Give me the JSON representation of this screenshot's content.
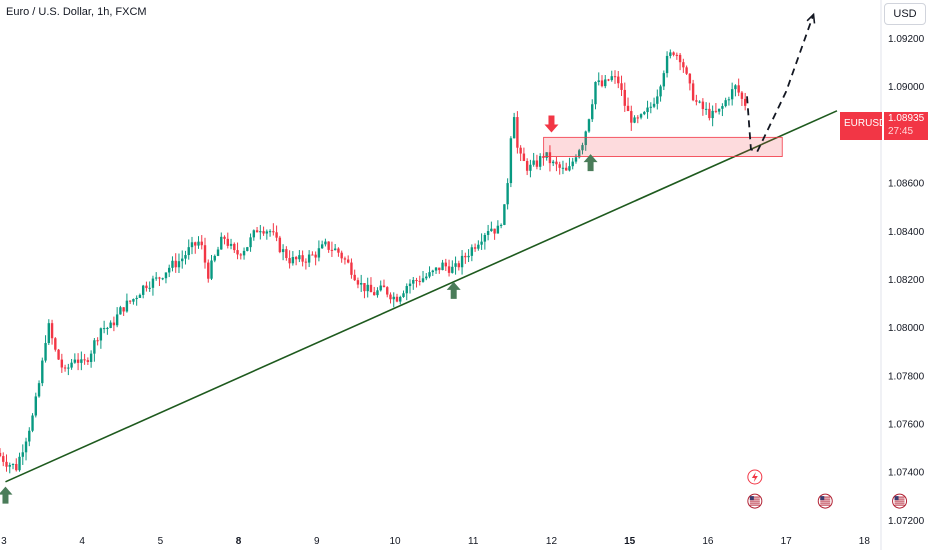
{
  "header": {
    "title": "Euro / U.S. Dollar, 1h, FXCM",
    "currency_label": "USD"
  },
  "price_badge": {
    "symbol": "EURUSD",
    "price": "1.08935",
    "countdown": "27:45"
  },
  "colors": {
    "up": "#089981",
    "down": "#f23645",
    "trendline": "#1e5a1e",
    "arrow_up": "#4a7c59",
    "arrow_down": "#f23645"
  },
  "chart_data": {
    "type": "candlestick",
    "title": "Euro / U.S. Dollar, 1h, FXCM",
    "x_ticks": [
      {
        "label": "3",
        "x": 0,
        "bold": false
      },
      {
        "label": "4",
        "x": 1,
        "bold": false
      },
      {
        "label": "5",
        "x": 2,
        "bold": false
      },
      {
        "label": "8",
        "x": 3,
        "bold": true
      },
      {
        "label": "9",
        "x": 4,
        "bold": false
      },
      {
        "label": "10",
        "x": 5,
        "bold": false
      },
      {
        "label": "11",
        "x": 6,
        "bold": false
      },
      {
        "label": "12",
        "x": 7,
        "bold": false
      },
      {
        "label": "15",
        "x": 8,
        "bold": true
      },
      {
        "label": "16",
        "x": 9,
        "bold": false
      },
      {
        "label": "17",
        "x": 10,
        "bold": false
      },
      {
        "label": "18",
        "x": 11,
        "bold": false
      }
    ],
    "y_ticks": [
      "1.09200",
      "1.09000",
      "1.08800",
      "1.08600",
      "1.08400",
      "1.08200",
      "1.08000",
      "1.07800",
      "1.07600",
      "1.07400",
      "1.07200"
    ],
    "y_tick_values": [
      1.092,
      1.09,
      1.088,
      1.086,
      1.084,
      1.082,
      1.08,
      1.078,
      1.076,
      1.074,
      1.072
    ],
    "ylim": [
      1.0716,
      1.0936
    ],
    "xlim": [
      -0.05,
      11.2
    ],
    "price_path": [
      [
        -0.05,
        1.0748
      ],
      [
        0.08,
        1.0744
      ],
      [
        0.2,
        1.0742
      ],
      [
        0.3,
        1.0752
      ],
      [
        0.42,
        1.0764
      ],
      [
        0.52,
        1.0782
      ],
      [
        0.6,
        1.0802
      ],
      [
        0.7,
        1.079
      ],
      [
        0.82,
        1.0781
      ],
      [
        0.95,
        1.0788
      ],
      [
        1.05,
        1.0784
      ],
      [
        1.15,
        1.079
      ],
      [
        1.28,
        1.08
      ],
      [
        1.4,
        1.08
      ],
      [
        1.55,
        1.0808
      ],
      [
        1.7,
        1.0812
      ],
      [
        1.85,
        1.0818
      ],
      [
        2.0,
        1.082
      ],
      [
        2.15,
        1.0825
      ],
      [
        2.3,
        1.0828
      ],
      [
        2.4,
        1.0832
      ],
      [
        2.55,
        1.0836
      ],
      [
        2.65,
        1.0822
      ],
      [
        2.75,
        1.083
      ],
      [
        2.85,
        1.0838
      ],
      [
        3.0,
        1.083
      ],
      [
        3.15,
        1.0834
      ],
      [
        3.3,
        1.0842
      ],
      [
        3.45,
        1.084
      ],
      [
        3.55,
        1.0834
      ],
      [
        3.7,
        1.0828
      ],
      [
        3.85,
        1.0828
      ],
      [
        4.0,
        1.083
      ],
      [
        4.15,
        1.0834
      ],
      [
        4.3,
        1.0832
      ],
      [
        4.45,
        1.0826
      ],
      [
        4.6,
        1.0818
      ],
      [
        4.75,
        1.0814
      ],
      [
        4.9,
        1.0816
      ],
      [
        5.05,
        1.0812
      ],
      [
        5.2,
        1.0818
      ],
      [
        5.35,
        1.082
      ],
      [
        5.5,
        1.0822
      ],
      [
        5.65,
        1.0826
      ],
      [
        5.8,
        1.0824
      ],
      [
        5.95,
        1.083
      ],
      [
        6.1,
        1.0836
      ],
      [
        6.25,
        1.0842
      ],
      [
        6.35,
        1.084
      ],
      [
        6.45,
        1.085
      ],
      [
        6.5,
        1.0868
      ],
      [
        6.55,
        1.0895
      ],
      [
        6.6,
        1.0875
      ],
      [
        6.65,
        1.087
      ],
      [
        6.75,
        1.0866
      ],
      [
        6.85,
        1.0868
      ],
      [
        6.95,
        1.0872
      ],
      [
        7.05,
        1.0868
      ],
      [
        7.15,
        1.0866
      ],
      [
        7.25,
        1.0864
      ],
      [
        7.35,
        1.0872
      ],
      [
        7.45,
        1.0878
      ],
      [
        7.55,
        1.0892
      ],
      [
        7.6,
        1.0902
      ],
      [
        7.7,
        1.09
      ],
      [
        7.8,
        1.0904
      ],
      [
        7.9,
        1.0902
      ],
      [
        8.0,
        1.089
      ],
      [
        8.1,
        1.0885
      ],
      [
        8.2,
        1.0887
      ],
      [
        8.3,
        1.0891
      ],
      [
        8.4,
        1.0898
      ],
      [
        8.5,
        1.091
      ],
      [
        8.6,
        1.0915
      ],
      [
        8.7,
        1.0912
      ],
      [
        8.8,
        1.09
      ],
      [
        8.9,
        1.0893
      ],
      [
        9.0,
        1.089
      ],
      [
        9.1,
        1.0888
      ],
      [
        9.2,
        1.089
      ],
      [
        9.3,
        1.0896
      ],
      [
        9.4,
        1.09
      ],
      [
        9.5,
        1.0893
      ]
    ],
    "trendline": [
      [
        0.02,
        1.0736
      ],
      [
        10.65,
        1.089
      ]
    ],
    "zone": {
      "x1": 6.9,
      "x2": 9.95,
      "y_low": 1.0871,
      "y_high": 1.0879
    },
    "projection": [
      [
        9.5,
        1.0896
      ],
      [
        9.55,
        1.0874
      ],
      [
        9.63,
        1.0873
      ],
      [
        10.0,
        1.0898
      ],
      [
        10.35,
        1.093
      ]
    ],
    "markers": [
      {
        "kind": "up",
        "x": 0.02,
        "y": 1.0734
      },
      {
        "kind": "up",
        "x": 5.75,
        "y": 1.0819
      },
      {
        "kind": "down",
        "x": 7.0,
        "y": 1.0881
      },
      {
        "kind": "up",
        "x": 7.5,
        "y": 1.0872
      }
    ],
    "event_icons": [
      {
        "kind": "flash",
        "x": 9.6,
        "y": 1.0738
      },
      {
        "kind": "flag",
        "x": 9.6,
        "y": 1.0728
      },
      {
        "kind": "flag",
        "x": 10.5,
        "y": 1.0728
      },
      {
        "kind": "flag",
        "x": 11.45,
        "y": 1.0728
      }
    ]
  }
}
